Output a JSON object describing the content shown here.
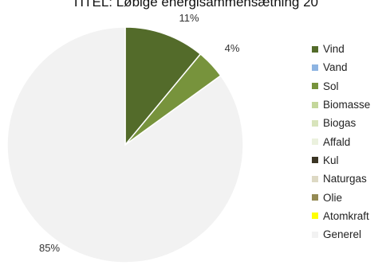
{
  "chart_data": {
    "type": "pie",
    "title": "TITEL: Løbige energisammensætning 20",
    "categories": [
      "Vind",
      "Vand",
      "Sol",
      "Biomasse",
      "Biogas",
      "Affald",
      "Kul",
      "Naturgas",
      "Olie",
      "Atomkraft",
      "Generel"
    ],
    "values": [
      11,
      0,
      4,
      0,
      0,
      0,
      0,
      0,
      0,
      0,
      85
    ],
    "data_labels": [
      "11%",
      "",
      "4%",
      "",
      "",
      "",
      "",
      "",
      "",
      "",
      "85%"
    ],
    "colors": [
      "#536b2a",
      "#8db4e2",
      "#77933c",
      "#c4d79b",
      "#d8e4bc",
      "#ebf1de",
      "#3b3524",
      "#ddd9c4",
      "#948a54",
      "#ffff00",
      "#f2f2f2"
    ],
    "legend_position": "right",
    "grid": false
  }
}
